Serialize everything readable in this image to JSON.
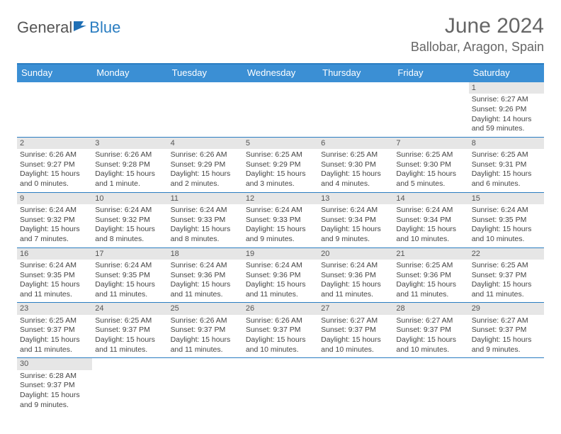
{
  "brand": {
    "part1": "General",
    "part2": "Blue"
  },
  "title": "June 2024",
  "location": "Ballobar, Aragon, Spain",
  "colors": {
    "header_bar": "#3b8fd4",
    "rule": "#2a7dc1",
    "date_bg": "#e6e6e6",
    "text": "#555555"
  },
  "weekdays": [
    "Sunday",
    "Monday",
    "Tuesday",
    "Wednesday",
    "Thursday",
    "Friday",
    "Saturday"
  ],
  "weeks": [
    [
      null,
      null,
      null,
      null,
      null,
      null,
      {
        "n": "1",
        "sr": "Sunrise: 6:27 AM",
        "ss": "Sunset: 9:26 PM",
        "dl": "Daylight: 14 hours and 59 minutes."
      }
    ],
    [
      {
        "n": "2",
        "sr": "Sunrise: 6:26 AM",
        "ss": "Sunset: 9:27 PM",
        "dl": "Daylight: 15 hours and 0 minutes."
      },
      {
        "n": "3",
        "sr": "Sunrise: 6:26 AM",
        "ss": "Sunset: 9:28 PM",
        "dl": "Daylight: 15 hours and 1 minute."
      },
      {
        "n": "4",
        "sr": "Sunrise: 6:26 AM",
        "ss": "Sunset: 9:29 PM",
        "dl": "Daylight: 15 hours and 2 minutes."
      },
      {
        "n": "5",
        "sr": "Sunrise: 6:25 AM",
        "ss": "Sunset: 9:29 PM",
        "dl": "Daylight: 15 hours and 3 minutes."
      },
      {
        "n": "6",
        "sr": "Sunrise: 6:25 AM",
        "ss": "Sunset: 9:30 PM",
        "dl": "Daylight: 15 hours and 4 minutes."
      },
      {
        "n": "7",
        "sr": "Sunrise: 6:25 AM",
        "ss": "Sunset: 9:30 PM",
        "dl": "Daylight: 15 hours and 5 minutes."
      },
      {
        "n": "8",
        "sr": "Sunrise: 6:25 AM",
        "ss": "Sunset: 9:31 PM",
        "dl": "Daylight: 15 hours and 6 minutes."
      }
    ],
    [
      {
        "n": "9",
        "sr": "Sunrise: 6:24 AM",
        "ss": "Sunset: 9:32 PM",
        "dl": "Daylight: 15 hours and 7 minutes."
      },
      {
        "n": "10",
        "sr": "Sunrise: 6:24 AM",
        "ss": "Sunset: 9:32 PM",
        "dl": "Daylight: 15 hours and 8 minutes."
      },
      {
        "n": "11",
        "sr": "Sunrise: 6:24 AM",
        "ss": "Sunset: 9:33 PM",
        "dl": "Daylight: 15 hours and 8 minutes."
      },
      {
        "n": "12",
        "sr": "Sunrise: 6:24 AM",
        "ss": "Sunset: 9:33 PM",
        "dl": "Daylight: 15 hours and 9 minutes."
      },
      {
        "n": "13",
        "sr": "Sunrise: 6:24 AM",
        "ss": "Sunset: 9:34 PM",
        "dl": "Daylight: 15 hours and 9 minutes."
      },
      {
        "n": "14",
        "sr": "Sunrise: 6:24 AM",
        "ss": "Sunset: 9:34 PM",
        "dl": "Daylight: 15 hours and 10 minutes."
      },
      {
        "n": "15",
        "sr": "Sunrise: 6:24 AM",
        "ss": "Sunset: 9:35 PM",
        "dl": "Daylight: 15 hours and 10 minutes."
      }
    ],
    [
      {
        "n": "16",
        "sr": "Sunrise: 6:24 AM",
        "ss": "Sunset: 9:35 PM",
        "dl": "Daylight: 15 hours and 11 minutes."
      },
      {
        "n": "17",
        "sr": "Sunrise: 6:24 AM",
        "ss": "Sunset: 9:35 PM",
        "dl": "Daylight: 15 hours and 11 minutes."
      },
      {
        "n": "18",
        "sr": "Sunrise: 6:24 AM",
        "ss": "Sunset: 9:36 PM",
        "dl": "Daylight: 15 hours and 11 minutes."
      },
      {
        "n": "19",
        "sr": "Sunrise: 6:24 AM",
        "ss": "Sunset: 9:36 PM",
        "dl": "Daylight: 15 hours and 11 minutes."
      },
      {
        "n": "20",
        "sr": "Sunrise: 6:24 AM",
        "ss": "Sunset: 9:36 PM",
        "dl": "Daylight: 15 hours and 11 minutes."
      },
      {
        "n": "21",
        "sr": "Sunrise: 6:25 AM",
        "ss": "Sunset: 9:36 PM",
        "dl": "Daylight: 15 hours and 11 minutes."
      },
      {
        "n": "22",
        "sr": "Sunrise: 6:25 AM",
        "ss": "Sunset: 9:37 PM",
        "dl": "Daylight: 15 hours and 11 minutes."
      }
    ],
    [
      {
        "n": "23",
        "sr": "Sunrise: 6:25 AM",
        "ss": "Sunset: 9:37 PM",
        "dl": "Daylight: 15 hours and 11 minutes."
      },
      {
        "n": "24",
        "sr": "Sunrise: 6:25 AM",
        "ss": "Sunset: 9:37 PM",
        "dl": "Daylight: 15 hours and 11 minutes."
      },
      {
        "n": "25",
        "sr": "Sunrise: 6:26 AM",
        "ss": "Sunset: 9:37 PM",
        "dl": "Daylight: 15 hours and 11 minutes."
      },
      {
        "n": "26",
        "sr": "Sunrise: 6:26 AM",
        "ss": "Sunset: 9:37 PM",
        "dl": "Daylight: 15 hours and 10 minutes."
      },
      {
        "n": "27",
        "sr": "Sunrise: 6:27 AM",
        "ss": "Sunset: 9:37 PM",
        "dl": "Daylight: 15 hours and 10 minutes."
      },
      {
        "n": "28",
        "sr": "Sunrise: 6:27 AM",
        "ss": "Sunset: 9:37 PM",
        "dl": "Daylight: 15 hours and 10 minutes."
      },
      {
        "n": "29",
        "sr": "Sunrise: 6:27 AM",
        "ss": "Sunset: 9:37 PM",
        "dl": "Daylight: 15 hours and 9 minutes."
      }
    ],
    [
      {
        "n": "30",
        "sr": "Sunrise: 6:28 AM",
        "ss": "Sunset: 9:37 PM",
        "dl": "Daylight: 15 hours and 9 minutes."
      },
      null,
      null,
      null,
      null,
      null,
      null
    ]
  ]
}
